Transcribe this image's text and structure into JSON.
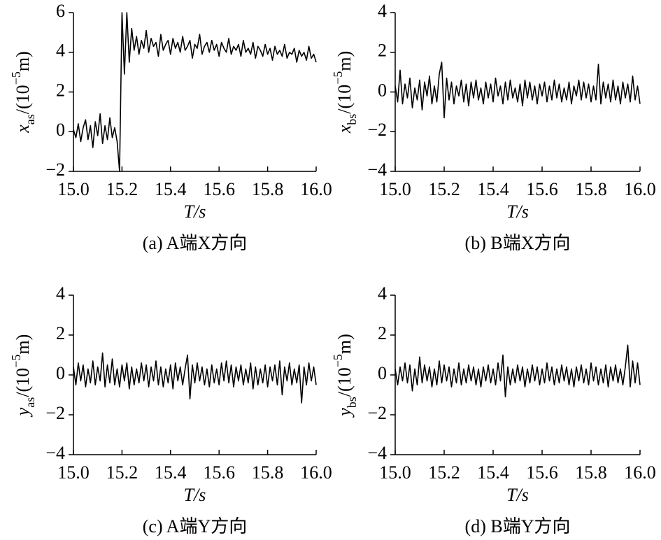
{
  "chart_data": [
    {
      "type": "line",
      "ylabel": [
        "x",
        "as",
        "/(10",
        "−5",
        "m)"
      ],
      "xlabel": "T/s",
      "caption": "(a) A端X方向",
      "color": "#000000",
      "xlim": [
        15,
        16
      ],
      "xticks": [
        {
          "value": 15,
          "label": "15.0"
        },
        15.2,
        15.4,
        15.6,
        15.8,
        {
          "value": 16,
          "label": "16.0"
        }
      ],
      "ylim": [
        -2,
        6
      ],
      "yticks": [
        {
          "value": -2,
          "label": "−2"
        },
        0,
        2,
        4,
        6
      ],
      "x": [
        15,
        15.01,
        15.02,
        15.03,
        15.04,
        15.05,
        15.06,
        15.07,
        15.08,
        15.09,
        15.1,
        15.11,
        15.12,
        15.13,
        15.14,
        15.15,
        15.16,
        15.17,
        15.18,
        15.19,
        15.2,
        15.21,
        15.22,
        15.23,
        15.24,
        15.25,
        15.26,
        15.27,
        15.28,
        15.29,
        15.3,
        15.31,
        15.32,
        15.33,
        15.34,
        15.35,
        15.36,
        15.37,
        15.38,
        15.39,
        15.4,
        15.41,
        15.42,
        15.43,
        15.44,
        15.45,
        15.46,
        15.47,
        15.48,
        15.49,
        15.5,
        15.51,
        15.52,
        15.53,
        15.54,
        15.55,
        15.56,
        15.57,
        15.58,
        15.59,
        15.6,
        15.61,
        15.62,
        15.63,
        15.64,
        15.65,
        15.66,
        15.67,
        15.68,
        15.69,
        15.7,
        15.71,
        15.72,
        15.73,
        15.74,
        15.75,
        15.76,
        15.77,
        15.78,
        15.79,
        15.8,
        15.81,
        15.82,
        15.83,
        15.84,
        15.85,
        15.86,
        15.87,
        15.88,
        15.89,
        15.9,
        15.91,
        15.92,
        15.93,
        15.94,
        15.95,
        15.96,
        15.97,
        15.98,
        15.99,
        16
      ],
      "values": [
        0.1,
        -0.3,
        0.4,
        -0.5,
        0.2,
        0.6,
        -0.4,
        0.3,
        -0.8,
        0.5,
        -0.2,
        0.9,
        -0.6,
        0.3,
        -0.4,
        0.7,
        -0.3,
        0.2,
        -0.5,
        -2,
        6,
        2.9,
        6,
        3.5,
        5.2,
        4.1,
        4.8,
        3.9,
        4.6,
        4.2,
        5.1,
        4.0,
        4.7,
        4.3,
        4.5,
        3.8,
        4.9,
        4.1,
        4.4,
        4.6,
        3.9,
        4.7,
        4.2,
        4.5,
        4.0,
        4.8,
        4.1,
        4.3,
        4.6,
        3.7,
        4.4,
        4.2,
        4.9,
        3.9,
        4.3,
        4.5,
        4.0,
        4.6,
        4.1,
        4.4,
        3.8,
        4.5,
        4.2,
        4.0,
        4.7,
        3.9,
        4.3,
        4.1,
        4.4,
        3.8,
        4.6,
        4.0,
        4.2,
        3.9,
        4.5,
        3.7,
        4.3,
        4.1,
        3.8,
        4.4,
        3.9,
        4.2,
        3.6,
        4.3,
        3.9,
        4.1,
        3.8,
        4.4,
        3.7,
        4.0,
        3.9,
        4.2,
        3.5,
        4.1,
        3.8,
        4.0,
        3.6,
        4.3,
        3.7,
        3.9,
        3.5
      ]
    },
    {
      "type": "line",
      "ylabel": [
        "x",
        "bs",
        "/(10",
        "−5",
        "m)"
      ],
      "xlabel": "T/s",
      "caption": "(b) B端X方向",
      "color": "#000000",
      "xlim": [
        15,
        16
      ],
      "xticks": [
        {
          "value": 15,
          "label": "15.0"
        },
        15.2,
        15.4,
        15.6,
        15.8,
        {
          "value": 16,
          "label": "16.0"
        }
      ],
      "ylim": [
        -4,
        4
      ],
      "yticks": [
        {
          "value": -4,
          "label": "−4"
        },
        {
          "value": -2,
          "label": "−2"
        },
        0,
        2,
        4
      ],
      "x": [
        15,
        15.01,
        15.02,
        15.03,
        15.04,
        15.05,
        15.06,
        15.07,
        15.08,
        15.09,
        15.1,
        15.11,
        15.12,
        15.13,
        15.14,
        15.15,
        15.16,
        15.17,
        15.18,
        15.19,
        15.2,
        15.21,
        15.22,
        15.23,
        15.24,
        15.25,
        15.26,
        15.27,
        15.28,
        15.29,
        15.3,
        15.31,
        15.32,
        15.33,
        15.34,
        15.35,
        15.36,
        15.37,
        15.38,
        15.39,
        15.4,
        15.41,
        15.42,
        15.43,
        15.44,
        15.45,
        15.46,
        15.47,
        15.48,
        15.49,
        15.5,
        15.51,
        15.52,
        15.53,
        15.54,
        15.55,
        15.56,
        15.57,
        15.58,
        15.59,
        15.6,
        15.61,
        15.62,
        15.63,
        15.64,
        15.65,
        15.66,
        15.67,
        15.68,
        15.69,
        15.7,
        15.71,
        15.72,
        15.73,
        15.74,
        15.75,
        15.76,
        15.77,
        15.78,
        15.79,
        15.8,
        15.81,
        15.82,
        15.83,
        15.84,
        15.85,
        15.86,
        15.87,
        15.88,
        15.89,
        15.9,
        15.91,
        15.92,
        15.93,
        15.94,
        15.95,
        15.96,
        15.97,
        15.98,
        15.99,
        16
      ],
      "values": [
        0.3,
        -0.5,
        1.1,
        -0.6,
        0.4,
        -0.3,
        0.7,
        -0.8,
        0.2,
        -0.4,
        0.6,
        -0.9,
        0.5,
        -0.2,
        0.8,
        -0.6,
        0.3,
        -0.5,
        0.9,
        1.5,
        -1.3,
        0.7,
        -0.4,
        0.5,
        -0.6,
        0.3,
        -0.2,
        0.6,
        -0.5,
        0.4,
        -0.7,
        0.5,
        -0.3,
        0.6,
        -0.4,
        0.2,
        -0.6,
        0.5,
        -0.3,
        0.4,
        -0.5,
        0.7,
        -0.2,
        0.3,
        -0.6,
        0.5,
        -0.4,
        0.6,
        -0.3,
        0.2,
        -0.5,
        0.4,
        -0.7,
        0.6,
        -0.3,
        0.5,
        -0.4,
        0.3,
        -0.6,
        0.4,
        -0.2,
        0.5,
        -0.5,
        0.3,
        -0.4,
        0.6,
        -0.3,
        0.4,
        -0.5,
        0.2,
        -0.4,
        0.5,
        -0.6,
        0.3,
        -0.2,
        0.6,
        -0.4,
        0.5,
        -0.3,
        0.4,
        -0.5,
        0.3,
        -0.4,
        1.4,
        -0.6,
        0.5,
        -0.3,
        0.4,
        -0.5,
        0.6,
        -0.4,
        0.3,
        -0.6,
        0.5,
        -0.3,
        0.4,
        -0.5,
        0.8,
        -0.4,
        0.3,
        -0.6
      ]
    },
    {
      "type": "line",
      "ylabel": [
        "y",
        "as",
        "/(10",
        "−5",
        "m)"
      ],
      "xlabel": "T/s",
      "caption": "(c) A端Y方向",
      "color": "#000000",
      "xlim": [
        15,
        16
      ],
      "xticks": [
        {
          "value": 15,
          "label": "15.0"
        },
        15.2,
        15.4,
        15.6,
        15.8,
        {
          "value": 16,
          "label": "16.0"
        }
      ],
      "ylim": [
        -4,
        4
      ],
      "yticks": [
        {
          "value": -4,
          "label": "−4"
        },
        {
          "value": -2,
          "label": "−2"
        },
        0,
        2,
        4
      ],
      "x": [
        15,
        15.01,
        15.02,
        15.03,
        15.04,
        15.05,
        15.06,
        15.07,
        15.08,
        15.09,
        15.1,
        15.11,
        15.12,
        15.13,
        15.14,
        15.15,
        15.16,
        15.17,
        15.18,
        15.19,
        15.2,
        15.21,
        15.22,
        15.23,
        15.24,
        15.25,
        15.26,
        15.27,
        15.28,
        15.29,
        15.3,
        15.31,
        15.32,
        15.33,
        15.34,
        15.35,
        15.36,
        15.37,
        15.38,
        15.39,
        15.4,
        15.41,
        15.42,
        15.43,
        15.44,
        15.45,
        15.46,
        15.47,
        15.48,
        15.49,
        15.5,
        15.51,
        15.52,
        15.53,
        15.54,
        15.55,
        15.56,
        15.57,
        15.58,
        15.59,
        15.6,
        15.61,
        15.62,
        15.63,
        15.64,
        15.65,
        15.66,
        15.67,
        15.68,
        15.69,
        15.7,
        15.71,
        15.72,
        15.73,
        15.74,
        15.75,
        15.76,
        15.77,
        15.78,
        15.79,
        15.8,
        15.81,
        15.82,
        15.83,
        15.84,
        15.85,
        15.86,
        15.87,
        15.88,
        15.89,
        15.9,
        15.91,
        15.92,
        15.93,
        15.94,
        15.95,
        15.96,
        15.97,
        15.98,
        15.99,
        16
      ],
      "values": [
        0.4,
        -0.5,
        0.6,
        -0.3,
        0.5,
        -0.6,
        0.3,
        -0.4,
        0.7,
        -0.5,
        0.4,
        -0.3,
        1.1,
        -0.6,
        0.5,
        -0.4,
        0.8,
        -0.5,
        0.3,
        -0.6,
        0.5,
        -0.3,
        0.6,
        -0.7,
        0.4,
        -0.5,
        0.3,
        -0.4,
        0.6,
        -0.3,
        0.5,
        -0.6,
        0.4,
        -0.3,
        0.7,
        -0.5,
        0.4,
        -0.6,
        0.3,
        -0.4,
        0.5,
        -0.7,
        0.6,
        -0.3,
        0.4,
        -0.5,
        0.3,
        1.0,
        -1.2,
        0.5,
        -0.4,
        0.6,
        -0.3,
        0.4,
        -0.5,
        0.3,
        -0.6,
        0.5,
        -0.4,
        0.3,
        -0.5,
        0.6,
        -0.3,
        0.7,
        -0.4,
        0.5,
        -0.6,
        0.4,
        -0.3,
        0.5,
        -0.5,
        0.3,
        -0.4,
        0.6,
        -0.7,
        0.4,
        -0.5,
        0.3,
        -0.4,
        0.5,
        -0.6,
        0.4,
        -0.3,
        0.5,
        -0.5,
        0.7,
        -1.0,
        0.4,
        -0.3,
        0.6,
        -0.5,
        0.3,
        -0.4,
        0.5,
        -1.4,
        0.4,
        -0.5,
        0.6,
        -0.3,
        0.4,
        -0.5
      ]
    },
    {
      "type": "line",
      "ylabel": [
        "y",
        "bs",
        "/(10",
        "−5",
        "m)"
      ],
      "xlabel": "T/s",
      "caption": "(d) B端Y方向",
      "color": "#000000",
      "xlim": [
        15,
        16
      ],
      "xticks": [
        {
          "value": 15,
          "label": "15.0"
        },
        15.2,
        15.4,
        15.6,
        15.8,
        {
          "value": 16,
          "label": "16.0"
        }
      ],
      "ylim": [
        -4,
        4
      ],
      "yticks": [
        {
          "value": -4,
          "label": "−4"
        },
        {
          "value": -2,
          "label": "−2"
        },
        0,
        2,
        4
      ],
      "x": [
        15,
        15.01,
        15.02,
        15.03,
        15.04,
        15.05,
        15.06,
        15.07,
        15.08,
        15.09,
        15.1,
        15.11,
        15.12,
        15.13,
        15.14,
        15.15,
        15.16,
        15.17,
        15.18,
        15.19,
        15.2,
        15.21,
        15.22,
        15.23,
        15.24,
        15.25,
        15.26,
        15.27,
        15.28,
        15.29,
        15.3,
        15.31,
        15.32,
        15.33,
        15.34,
        15.35,
        15.36,
        15.37,
        15.38,
        15.39,
        15.4,
        15.41,
        15.42,
        15.43,
        15.44,
        15.45,
        15.46,
        15.47,
        15.48,
        15.49,
        15.5,
        15.51,
        15.52,
        15.53,
        15.54,
        15.55,
        15.56,
        15.57,
        15.58,
        15.59,
        15.6,
        15.61,
        15.62,
        15.63,
        15.64,
        15.65,
        15.66,
        15.67,
        15.68,
        15.69,
        15.7,
        15.71,
        15.72,
        15.73,
        15.74,
        15.75,
        15.76,
        15.77,
        15.78,
        15.79,
        15.8,
        15.81,
        15.82,
        15.83,
        15.84,
        15.85,
        15.86,
        15.87,
        15.88,
        15.89,
        15.9,
        15.91,
        15.92,
        15.93,
        15.94,
        15.95,
        15.96,
        15.97,
        15.98,
        15.99,
        16
      ],
      "values": [
        0.3,
        -0.5,
        0.4,
        -0.3,
        0.6,
        -0.4,
        0.5,
        -0.8,
        0.3,
        -0.5,
        0.9,
        -0.4,
        0.5,
        -0.3,
        0.4,
        -0.6,
        0.3,
        -0.5,
        0.7,
        -0.4,
        0.5,
        -0.3,
        0.4,
        -0.6,
        0.3,
        -0.4,
        0.6,
        -0.5,
        0.3,
        -0.4,
        0.5,
        -0.3,
        0.4,
        -0.5,
        0.3,
        -0.6,
        0.4,
        -0.3,
        0.5,
        -0.4,
        0.3,
        -0.5,
        0.6,
        -0.3,
        1.0,
        -1.1,
        0.4,
        -0.5,
        0.3,
        -0.4,
        0.5,
        -0.3,
        0.4,
        -0.6,
        0.3,
        -0.4,
        0.5,
        -0.3,
        0.4,
        -0.5,
        0.3,
        -0.4,
        0.6,
        -0.3,
        0.4,
        -0.5,
        0.3,
        -0.4,
        0.5,
        -0.3,
        0.4,
        -0.5,
        0.3,
        -0.6,
        0.4,
        -0.3,
        0.5,
        -0.4,
        0.3,
        -0.5,
        0.6,
        -0.3,
        0.4,
        -0.5,
        0.3,
        -0.4,
        0.5,
        -0.6,
        0.4,
        -0.3,
        0.5,
        -0.4,
        0.3,
        -0.5,
        0.4,
        1.5,
        -0.6,
        0.7,
        -0.4,
        0.6,
        -0.5
      ]
    }
  ]
}
